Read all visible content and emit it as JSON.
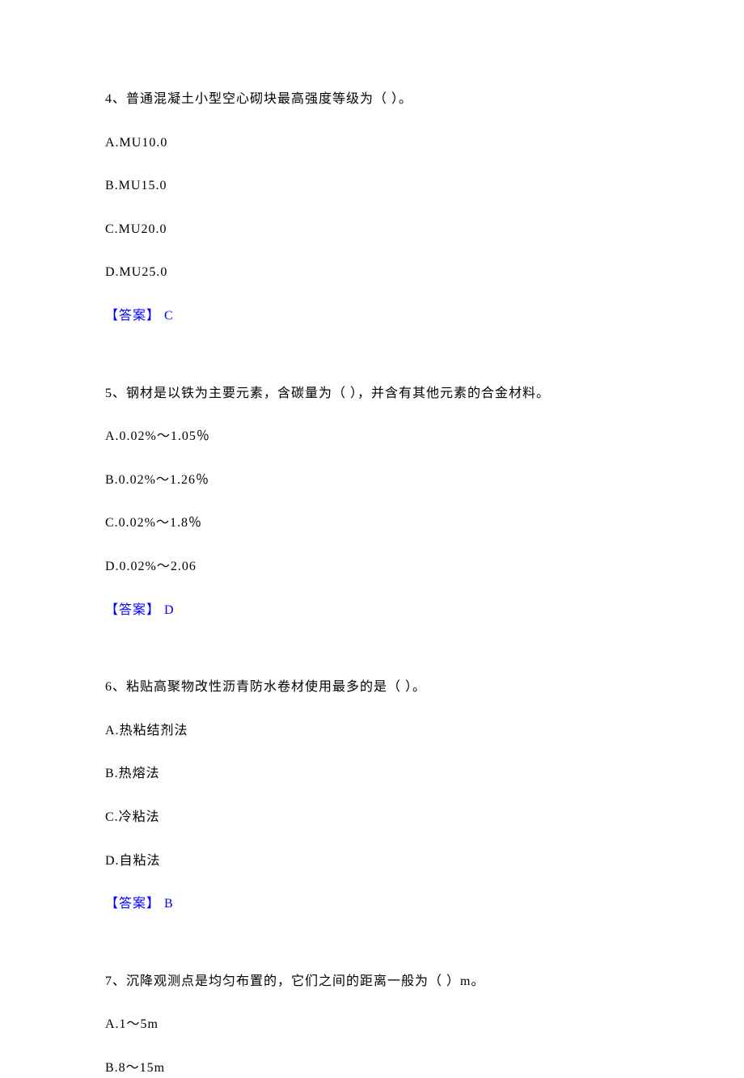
{
  "questions": [
    {
      "number": "4",
      "text": "4、普通混凝土小型空心砌块最高强度等级为（ ）。",
      "options": {
        "a": "A.MU10.0",
        "b": "B.MU15.0",
        "c": "C.MU20.0",
        "d": "D.MU25.0"
      },
      "answer_label": "【答案】",
      "answer_value": " C"
    },
    {
      "number": "5",
      "text": "5、钢材是以铁为主要元素，含碳量为（ ），并含有其他元素的合金材料。",
      "options": {
        "a": "A.0.02%～1.05％",
        "b": "B.0.02%～1.26％",
        "c": "C.0.02%～1.8％",
        "d": "D.0.02%～2.06"
      },
      "answer_label": "【答案】",
      "answer_value": " D"
    },
    {
      "number": "6",
      "text": "6、粘贴高聚物改性沥青防水卷材使用最多的是（ ）。",
      "options": {
        "a": "A.热粘结剂法",
        "b": "B.热熔法",
        "c": "C.冷粘法",
        "d": "D.自粘法"
      },
      "answer_label": "【答案】",
      "answer_value": " B"
    },
    {
      "number": "7",
      "text": "7、沉降观测点是均匀布置的，它们之间的距离一般为（ ）m。",
      "options": {
        "a": "A.1～5m",
        "b": "B.8～15m"
      },
      "answer_label": "",
      "answer_value": ""
    }
  ],
  "colors": {
    "text": "#000000",
    "answer": "#0000ff",
    "background": "#ffffff"
  },
  "typography": {
    "font_family": "SimSun",
    "font_size_pt": 12,
    "line_spacing": 1.6
  }
}
